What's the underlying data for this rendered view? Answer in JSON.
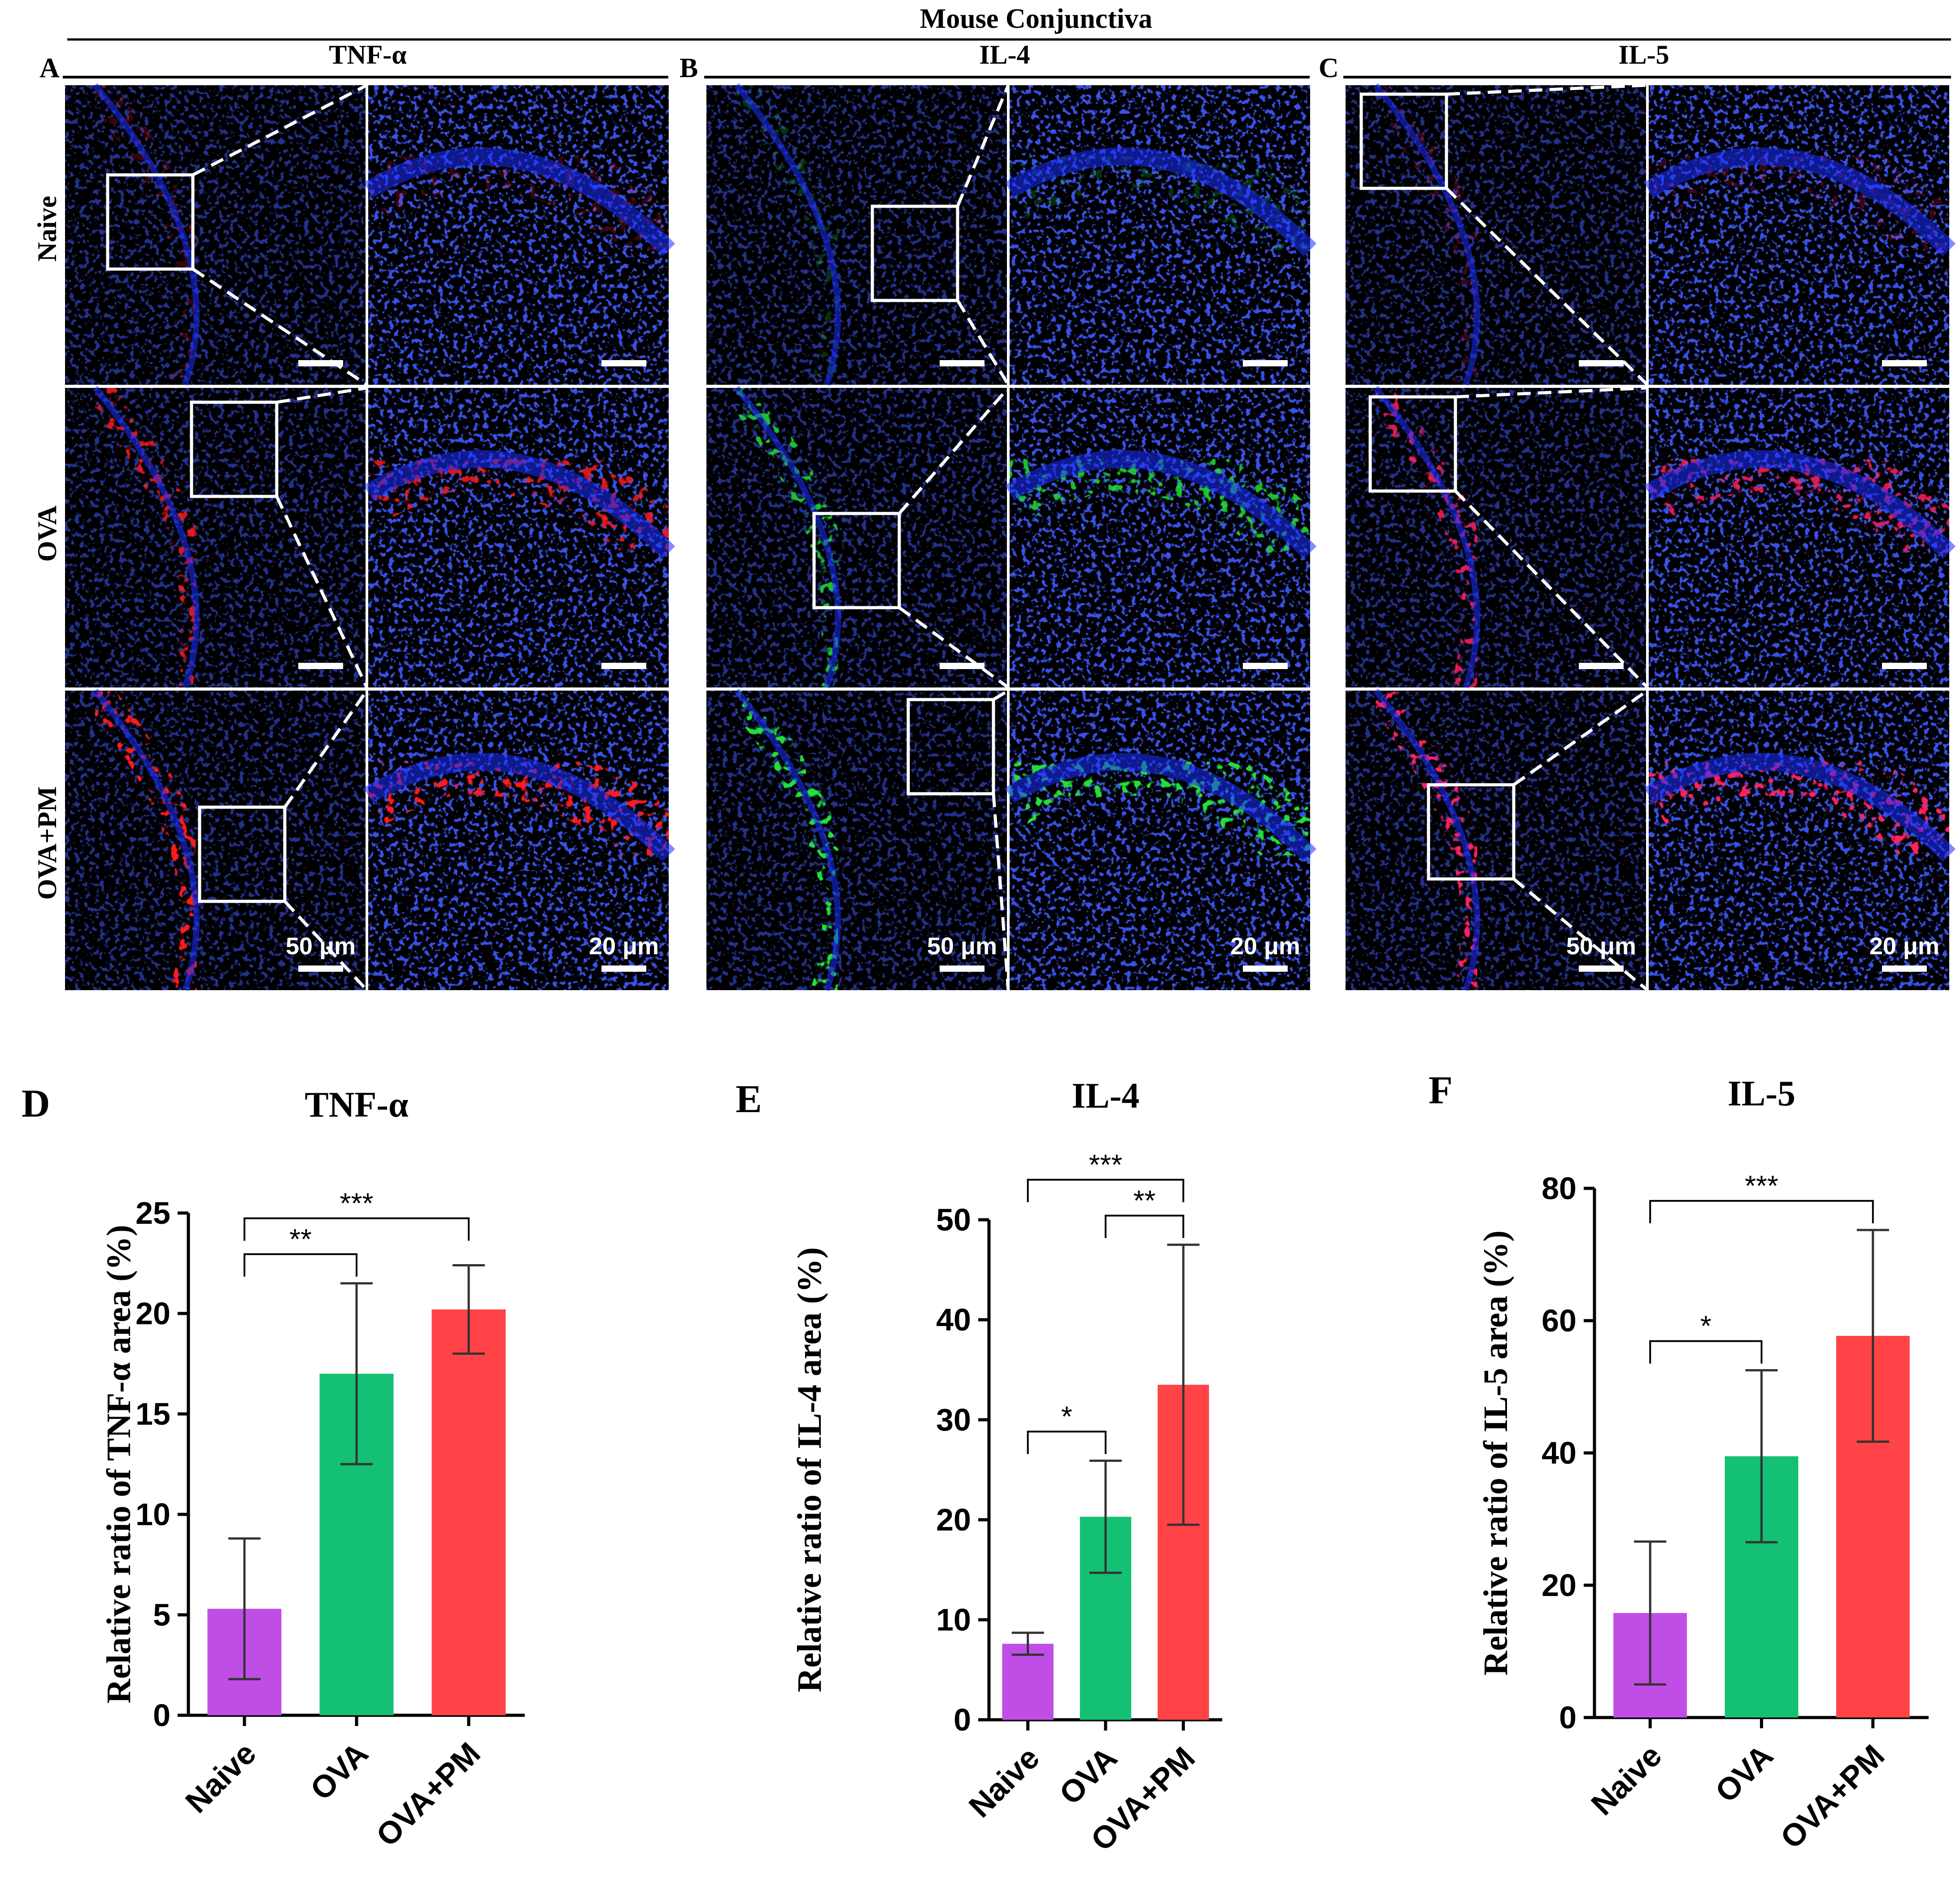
{
  "figure": {
    "title": "Mouse Conjunctiva",
    "panel_letters": [
      "A",
      "B",
      "C",
      "D",
      "E",
      "F"
    ],
    "micro_columns": [
      "TNF-α",
      "IL-4",
      "IL-5"
    ],
    "micro_rows": [
      "Naive",
      "OVA",
      "OVA+PM"
    ],
    "scale_bars": {
      "overview": "50 μm",
      "zoom": "20 μm"
    },
    "colors": {
      "dapi_blue": "#1a2dff",
      "tnf_red": "#ff1a1a",
      "il4_green": "#22e03a",
      "il5_magenta": "#ff2060",
      "naive_bar": "#c04ee6",
      "ova_bar": "#14c073",
      "ovapm_bar": "#ff4346"
    },
    "stain_colors": [
      "tnf_red",
      "il4_green",
      "il5_magenta"
    ]
  },
  "chart_data": [
    {
      "type": "bar",
      "panel": "D",
      "title": "TNF-α",
      "ylabel": "Relative ratio of TNF-α area (%)",
      "categories": [
        "Naive",
        "OVA",
        "OVA+PM"
      ],
      "values": [
        5.3,
        17.0,
        20.2
      ],
      "errors": [
        3.5,
        4.5,
        2.2
      ],
      "colors": [
        "#c04ee6",
        "#14c073",
        "#ff4346"
      ],
      "ylim": [
        0,
        25
      ],
      "yticks": [
        0,
        5,
        10,
        15,
        20,
        25
      ],
      "significance": [
        {
          "from": 0,
          "to": 1,
          "label": "**"
        },
        {
          "from": 0,
          "to": 2,
          "label": "***"
        }
      ]
    },
    {
      "type": "bar",
      "panel": "E",
      "title": "IL-4",
      "ylabel": "Relative ratio of IL-4 area (%)",
      "categories": [
        "Naive",
        "OVA",
        "OVA+PM"
      ],
      "values": [
        7.6,
        20.3,
        33.5
      ],
      "errors": [
        1.1,
        5.6,
        14.0
      ],
      "colors": [
        "#c04ee6",
        "#14c073",
        "#ff4346"
      ],
      "ylim": [
        0,
        50
      ],
      "yticks": [
        0,
        10,
        20,
        30,
        40,
        50
      ],
      "significance": [
        {
          "from": 0,
          "to": 1,
          "label": "*"
        },
        {
          "from": 1,
          "to": 2,
          "label": "**"
        },
        {
          "from": 0,
          "to": 2,
          "label": "***"
        }
      ]
    },
    {
      "type": "bar",
      "panel": "F",
      "title": "IL-5",
      "ylabel": "Relative ratio of IL-5 area (%)",
      "categories": [
        "Naive",
        "OVA",
        "OVA+PM"
      ],
      "values": [
        15.8,
        39.5,
        57.7
      ],
      "errors": [
        10.8,
        13.0,
        16.0
      ],
      "colors": [
        "#c04ee6",
        "#14c073",
        "#ff4346"
      ],
      "ylim": [
        0,
        80
      ],
      "yticks": [
        0,
        20,
        40,
        60,
        80
      ],
      "significance": [
        {
          "from": 0,
          "to": 1,
          "label": "*"
        },
        {
          "from": 0,
          "to": 2,
          "label": "***"
        }
      ]
    }
  ]
}
